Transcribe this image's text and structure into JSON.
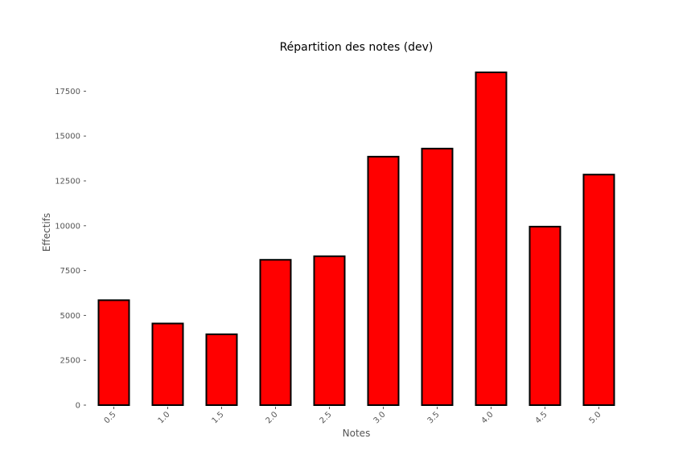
{
  "chart_data": {
    "type": "bar",
    "title": "Répartition des notes (dev)",
    "xlabel": "Notes",
    "ylabel": "Effectifs",
    "categories": [
      "0.5",
      "1.0",
      "1.5",
      "2.0",
      "2.5",
      "3.0",
      "3.5",
      "4.0",
      "4.5",
      "5.0"
    ],
    "values": [
      5850,
      4550,
      3950,
      8100,
      8300,
      13850,
      14300,
      18550,
      9950,
      12850
    ],
    "yticks": [
      0,
      2500,
      5000,
      7500,
      10000,
      12500,
      15000,
      17500
    ],
    "ytick_labels": [
      "0",
      "2500",
      "5000",
      "7500",
      "10000",
      "12500",
      "15000",
      "17500"
    ],
    "ylim": [
      0,
      18550
    ],
    "grid": false,
    "legend": "none",
    "colors": {
      "bar_fill": "#ff0000",
      "bar_edge": "#000000",
      "text": "#555555",
      "title": "#000000"
    }
  }
}
